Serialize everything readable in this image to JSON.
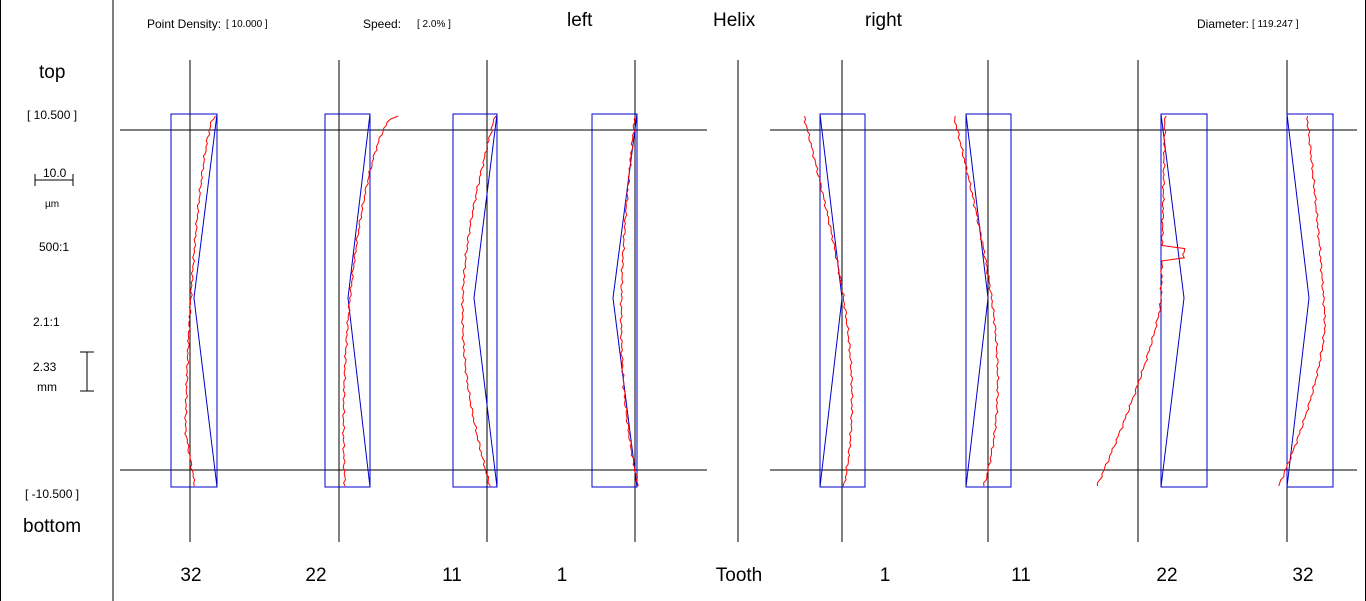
{
  "header": {
    "point_density_label": "Point Density:",
    "point_density_value": "[ 10.000 ]",
    "speed_label": "Speed:",
    "speed_value": "[ 2.0% ]",
    "left_label": "left",
    "title": "Helix",
    "right_label": "right",
    "diameter_label": "Diameter:",
    "diameter_value": "[ 119.247 ]"
  },
  "legend": {
    "top_label": "top",
    "top_value": "[ 10.500 ]",
    "scale_value": "10.0",
    "scale_unit": "µm",
    "magnification": "500:1",
    "ratio": "2.1:1",
    "length_value": "2.33",
    "length_unit": "mm",
    "bottom_value": "[ -10.500 ]",
    "bottom_label": "bottom"
  },
  "footer": {
    "tooth_label": "Tooth"
  },
  "chart_data": {
    "type": "line",
    "title": "Helix",
    "y_range": [
      -10.5,
      10.5
    ],
    "left_flank": {
      "label": "left",
      "teeth": [
        "32",
        "22",
        "11",
        "1"
      ]
    },
    "right_flank": {
      "label": "right",
      "teeth": [
        "1",
        "11",
        "22",
        "32"
      ]
    },
    "colors": {
      "measured": "#ff0000",
      "tolerance": "#0000cc",
      "axes": "#000000"
    }
  }
}
